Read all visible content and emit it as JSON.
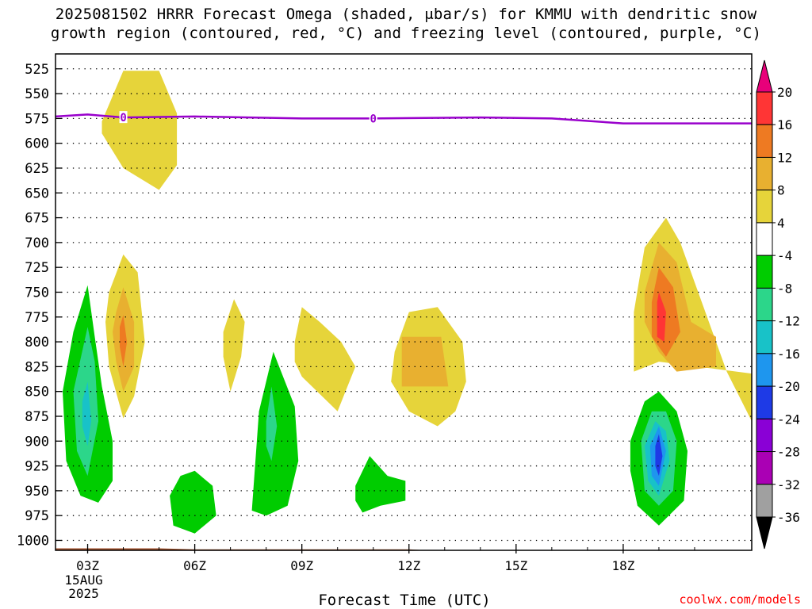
{
  "title": {
    "line1": "2025081502 HRRR Forecast Omega (shaded, μbar/s) for KMMU with dendritic snow",
    "line2": "growth region (contoured, red, °C) and freezing level (contoured, purple, °C)"
  },
  "credit": "coolwx.com/models",
  "chart_data": {
    "type": "heatmap",
    "xlabel": "Forecast Time (UTC)",
    "ylabel": "",
    "x_axis": {
      "unit": "hours after 00Z 15 Aug 2025",
      "range": [
        2.1,
        21.6
      ],
      "ticks": [
        {
          "x": 3,
          "label": "03Z",
          "sub": [
            "15AUG",
            "2025"
          ]
        },
        {
          "x": 6,
          "label": "06Z"
        },
        {
          "x": 9,
          "label": "09Z"
        },
        {
          "x": 12,
          "label": "12Z"
        },
        {
          "x": 15,
          "label": "15Z"
        },
        {
          "x": 18,
          "label": "18Z"
        }
      ]
    },
    "y_axis": {
      "unit": "hPa",
      "range": [
        1010,
        510
      ],
      "ticks": [
        525,
        550,
        575,
        600,
        625,
        650,
        675,
        700,
        725,
        750,
        775,
        800,
        825,
        850,
        875,
        900,
        925,
        950,
        975,
        1000
      ]
    },
    "grid": true,
    "colorbar": {
      "labels": [
        "20",
        "16",
        "12",
        "8",
        "4",
        "-4",
        "-8",
        "-12",
        "-16",
        "-20",
        "-24",
        "-28",
        "-32",
        "-36"
      ],
      "colors": [
        "#e8007a",
        "#ff3535",
        "#ee7a22",
        "#e8b030",
        "#e6d43a",
        "#ffffff",
        "#00cc00",
        "#2cd68a",
        "#18c2c8",
        "#1e96ee",
        "#1e3ae6",
        "#8a00d6",
        "#aa00b4",
        "#a0a0a0",
        "#000000"
      ]
    },
    "freezing_level": {
      "label": "0",
      "points": [
        [
          2.1,
          573
        ],
        [
          3,
          571
        ],
        [
          4,
          574
        ],
        [
          6,
          573
        ],
        [
          9,
          575
        ],
        [
          11,
          575
        ],
        [
          14,
          574
        ],
        [
          16,
          575
        ],
        [
          18,
          580
        ],
        [
          21.6,
          580
        ]
      ],
      "label_x": [
        4.0,
        11.0
      ]
    },
    "terrain_pressure": [
      [
        2.1,
        1008
      ],
      [
        5,
        1008
      ],
      [
        6,
        1009
      ],
      [
        12,
        1009
      ],
      [
        12.5,
        1010
      ],
      [
        21.6,
        1010
      ]
    ],
    "omega_regions": [
      {
        "value": 4,
        "color": "#e6d43a",
        "points": [
          [
            3.4,
            578
          ],
          [
            4.0,
            527
          ],
          [
            5.0,
            527
          ],
          [
            5.5,
            570
          ],
          [
            5.5,
            622
          ],
          [
            5.0,
            647
          ],
          [
            4.0,
            625
          ],
          [
            3.4,
            590
          ]
        ]
      },
      {
        "value": 4,
        "color": "#e6d43a",
        "points": [
          [
            3.6,
            750
          ],
          [
            4.0,
            712
          ],
          [
            4.4,
            730
          ],
          [
            4.6,
            800
          ],
          [
            4.3,
            855
          ],
          [
            4.0,
            877
          ],
          [
            3.6,
            825
          ],
          [
            3.5,
            780
          ]
        ]
      },
      {
        "value": 8,
        "color": "#e8b030",
        "points": [
          [
            3.8,
            770
          ],
          [
            4.0,
            745
          ],
          [
            4.3,
            780
          ],
          [
            4.3,
            825
          ],
          [
            4.0,
            850
          ],
          [
            3.8,
            820
          ],
          [
            3.7,
            790
          ]
        ]
      },
      {
        "value": 12,
        "color": "#ee7a22",
        "points": [
          [
            3.9,
            785
          ],
          [
            4.0,
            773
          ],
          [
            4.1,
            800
          ],
          [
            4.0,
            825
          ],
          [
            3.9,
            805
          ]
        ]
      },
      {
        "value": 4,
        "color": "#e6d43a",
        "points": [
          [
            6.8,
            790
          ],
          [
            7.1,
            757
          ],
          [
            7.4,
            780
          ],
          [
            7.3,
            815
          ],
          [
            7.0,
            850
          ],
          [
            6.8,
            815
          ]
        ]
      },
      {
        "value": 4,
        "color": "#e6d43a",
        "points": [
          [
            8.8,
            800
          ],
          [
            9.0,
            765
          ],
          [
            9.5,
            780
          ],
          [
            10.1,
            800
          ],
          [
            10.5,
            825
          ],
          [
            10.0,
            870
          ],
          [
            9.0,
            835
          ],
          [
            8.8,
            820
          ]
        ]
      },
      {
        "value": 4,
        "color": "#e6d43a",
        "points": [
          [
            11.6,
            810
          ],
          [
            12.0,
            770
          ],
          [
            12.8,
            765
          ],
          [
            13.5,
            800
          ],
          [
            13.6,
            840
          ],
          [
            13.3,
            870
          ],
          [
            12.8,
            885
          ],
          [
            12.0,
            870
          ],
          [
            11.5,
            840
          ]
        ]
      },
      {
        "value": 8,
        "color": "#e8b030",
        "points": [
          [
            11.8,
            795
          ],
          [
            12.9,
            795
          ],
          [
            13.1,
            845
          ],
          [
            11.8,
            845
          ]
        ]
      },
      {
        "value": 4,
        "color": "#e6d43a",
        "points": [
          [
            18.3,
            770
          ],
          [
            18.6,
            705
          ],
          [
            19.2,
            675
          ],
          [
            19.6,
            700
          ],
          [
            20.2,
            760
          ],
          [
            20.9,
            830
          ],
          [
            21.6,
            880
          ],
          [
            21.6,
            832
          ],
          [
            19.0,
            820
          ],
          [
            18.3,
            830
          ]
        ]
      },
      {
        "value": 8,
        "color": "#e8b030",
        "points": [
          [
            18.6,
            750
          ],
          [
            19.0,
            700
          ],
          [
            19.5,
            720
          ],
          [
            19.9,
            780
          ],
          [
            20.6,
            795
          ],
          [
            20.6,
            825
          ],
          [
            19.5,
            830
          ],
          [
            19.0,
            810
          ],
          [
            18.6,
            780
          ]
        ]
      },
      {
        "value": 12,
        "color": "#ee7a22",
        "points": [
          [
            18.8,
            760
          ],
          [
            19.0,
            725
          ],
          [
            19.4,
            745
          ],
          [
            19.6,
            790
          ],
          [
            19.2,
            815
          ],
          [
            18.8,
            795
          ]
        ]
      },
      {
        "value": 16,
        "color": "#ff3535",
        "points": [
          [
            18.95,
            760
          ],
          [
            19.0,
            750
          ],
          [
            19.2,
            770
          ],
          [
            19.15,
            800
          ],
          [
            18.95,
            795
          ]
        ]
      },
      {
        "value": -4,
        "color": "#00cc00",
        "points": [
          [
            2.3,
            850
          ],
          [
            2.6,
            790
          ],
          [
            3.0,
            743
          ],
          [
            3.2,
            795
          ],
          [
            3.4,
            845
          ],
          [
            3.7,
            900
          ],
          [
            3.7,
            940
          ],
          [
            3.3,
            962
          ],
          [
            2.8,
            955
          ],
          [
            2.4,
            920
          ]
        ]
      },
      {
        "value": -8,
        "color": "#2cd68a",
        "points": [
          [
            2.6,
            850
          ],
          [
            3.0,
            785
          ],
          [
            3.2,
            820
          ],
          [
            3.3,
            880
          ],
          [
            3.0,
            935
          ],
          [
            2.7,
            910
          ]
        ]
      },
      {
        "value": -12,
        "color": "#18c2c8",
        "points": [
          [
            2.85,
            860
          ],
          [
            3.0,
            840
          ],
          [
            3.1,
            880
          ],
          [
            3.0,
            905
          ],
          [
            2.85,
            885
          ]
        ]
      },
      {
        "value": -4,
        "color": "#00cc00",
        "points": [
          [
            5.3,
            955
          ],
          [
            5.6,
            935
          ],
          [
            6.0,
            930
          ],
          [
            6.5,
            945
          ],
          [
            6.6,
            975
          ],
          [
            6.0,
            993
          ],
          [
            5.4,
            985
          ]
        ]
      },
      {
        "value": -4,
        "color": "#00cc00",
        "points": [
          [
            7.8,
            870
          ],
          [
            8.2,
            810
          ],
          [
            8.8,
            865
          ],
          [
            8.9,
            920
          ],
          [
            8.6,
            965
          ],
          [
            8.0,
            975
          ],
          [
            7.6,
            970
          ]
        ]
      },
      {
        "value": -8,
        "color": "#2cd68a",
        "points": [
          [
            8.0,
            880
          ],
          [
            8.15,
            845
          ],
          [
            8.3,
            885
          ],
          [
            8.15,
            920
          ],
          [
            8.0,
            905
          ]
        ]
      },
      {
        "value": -4,
        "color": "#00cc00",
        "points": [
          [
            10.5,
            945
          ],
          [
            10.9,
            915
          ],
          [
            11.4,
            935
          ],
          [
            11.9,
            940
          ],
          [
            11.9,
            960
          ],
          [
            11.2,
            965
          ],
          [
            10.7,
            972
          ],
          [
            10.5,
            960
          ]
        ]
      },
      {
        "value": -4,
        "color": "#00cc00",
        "points": [
          [
            18.2,
            900
          ],
          [
            18.6,
            860
          ],
          [
            19.0,
            850
          ],
          [
            19.5,
            870
          ],
          [
            19.8,
            910
          ],
          [
            19.7,
            960
          ],
          [
            19.0,
            985
          ],
          [
            18.4,
            965
          ],
          [
            18.2,
            930
          ]
        ]
      },
      {
        "value": -8,
        "color": "#2cd68a",
        "points": [
          [
            18.5,
            900
          ],
          [
            18.8,
            870
          ],
          [
            19.2,
            870
          ],
          [
            19.5,
            900
          ],
          [
            19.4,
            950
          ],
          [
            19.0,
            965
          ],
          [
            18.6,
            950
          ]
        ]
      },
      {
        "value": -12,
        "color": "#18c2c8",
        "points": [
          [
            18.6,
            905
          ],
          [
            18.9,
            880
          ],
          [
            19.2,
            890
          ],
          [
            19.3,
            920
          ],
          [
            19.0,
            955
          ],
          [
            18.7,
            940
          ]
        ]
      },
      {
        "value": -16,
        "color": "#1e96ee",
        "points": [
          [
            18.75,
            905
          ],
          [
            19.0,
            885
          ],
          [
            19.2,
            910
          ],
          [
            19.0,
            945
          ],
          [
            18.8,
            935
          ]
        ]
      },
      {
        "value": -20,
        "color": "#1e3ae6",
        "points": [
          [
            18.9,
            905
          ],
          [
            19.0,
            893
          ],
          [
            19.1,
            915
          ],
          [
            19.0,
            935
          ],
          [
            18.9,
            925
          ]
        ]
      }
    ]
  }
}
